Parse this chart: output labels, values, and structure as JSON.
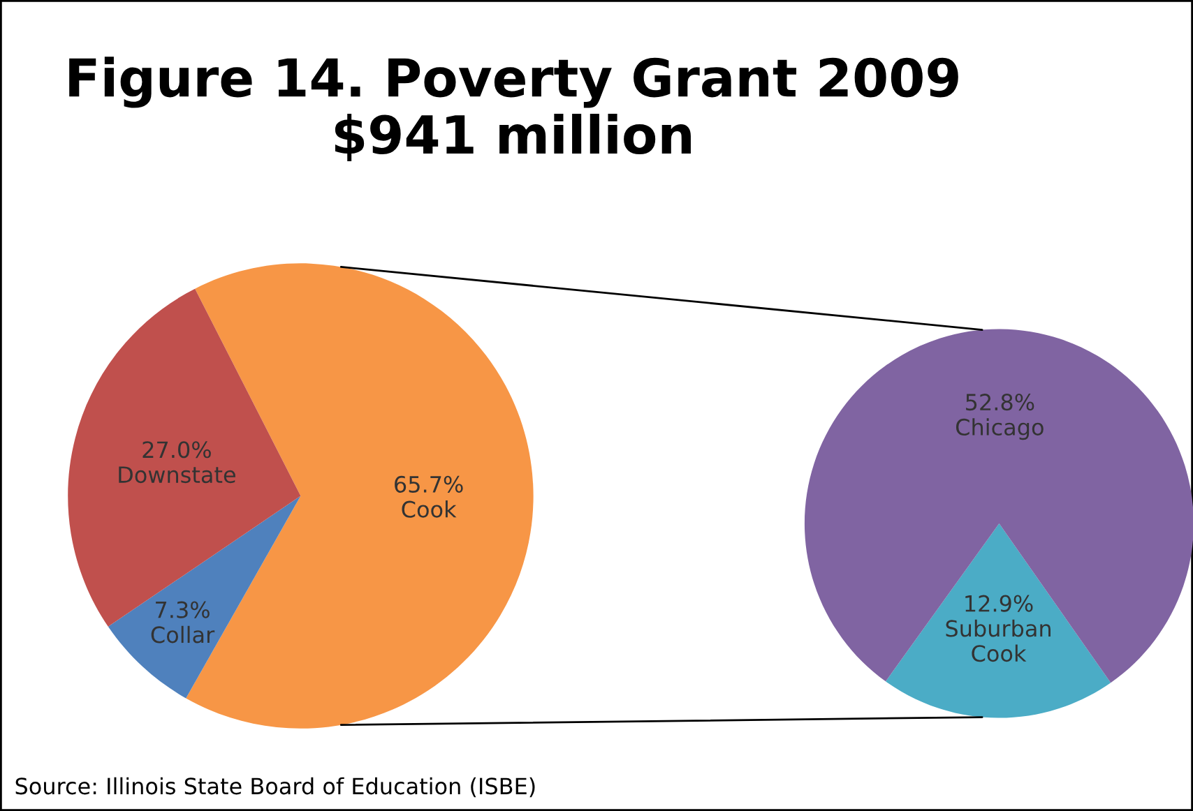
{
  "chart_data": [
    {
      "type": "pie",
      "title": "Figure 14. Poverty Grant 2009\n$941 million",
      "categories": [
        "Cook",
        "Collar",
        "Downstate"
      ],
      "values": [
        65.7,
        7.3,
        27.0
      ],
      "value_labels": [
        "65.7%",
        "7.3%",
        "27.0%"
      ],
      "colors": [
        "#f79646",
        "#4f81bd",
        "#c0504d"
      ],
      "annotations": [
        "Source: Illinois State Board of Education (ISBE)"
      ]
    },
    {
      "type": "pie",
      "categories": [
        "Suburban Cook",
        "Chicago"
      ],
      "values": [
        12.9,
        52.8
      ],
      "value_labels": [
        "12.9%",
        "52.8%"
      ],
      "colors": [
        "#4bacc6",
        "#8064a2"
      ]
    }
  ]
}
